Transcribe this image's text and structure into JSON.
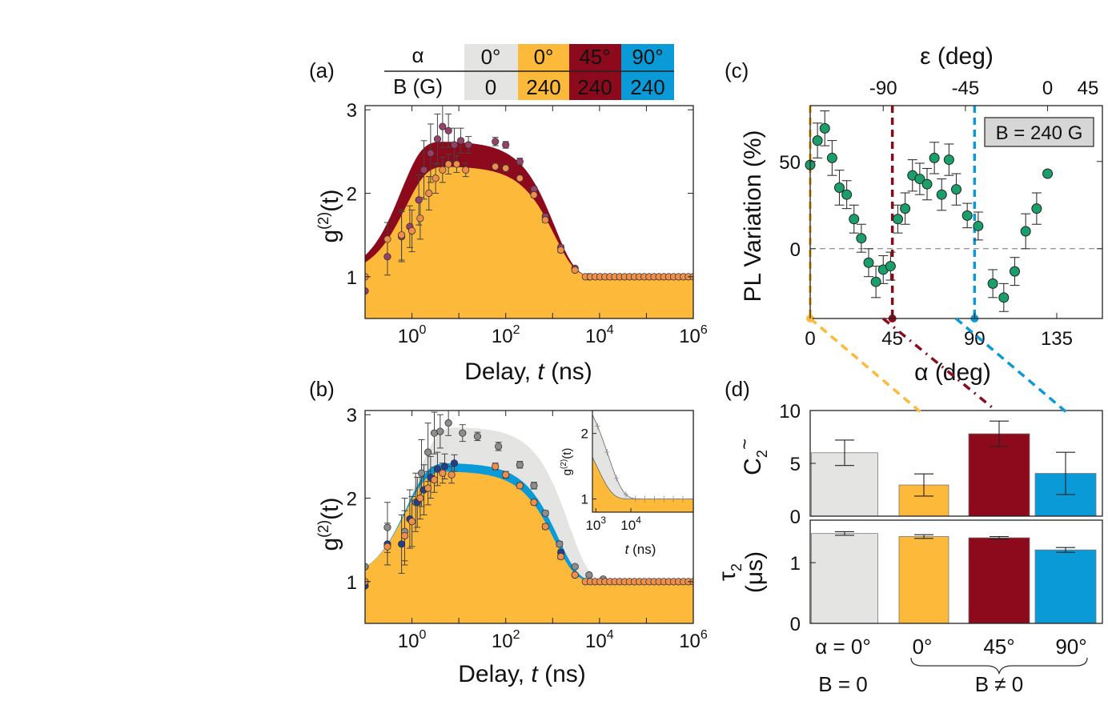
{
  "colors": {
    "grey": "#e4e4e2",
    "greyMarker": "#8d8d8d",
    "orange": "#fdb93a",
    "orangeMarker": "#ef8f4b",
    "darkred": "#8c0a1c",
    "purpleMarker": "#96406a",
    "blue": "#0b9ad8",
    "navyMarker": "#233f8c",
    "green": "#1a9e6a"
  },
  "legend_table": {
    "row1_label": "α",
    "row2_label": "B (G)",
    "columns": [
      {
        "alpha": "0°",
        "b": "0",
        "color_key": "grey"
      },
      {
        "alpha": "0°",
        "b": "240",
        "color_key": "orange"
      },
      {
        "alpha": "45°",
        "b": "240",
        "color_key": "darkred"
      },
      {
        "alpha": "90°",
        "b": "240",
        "color_key": "blue"
      }
    ]
  },
  "chart_data": [
    {
      "panel": "(a)",
      "type": "scatter",
      "xlabel_main": "Delay, ",
      "xlabel_var": "t",
      "xlabel_unit": " (ns)",
      "ylabel": "g(2)(t)",
      "ylabel_base": "g",
      "ylabel_sup": "(2)",
      "ylabel_tail": "(t)",
      "x_scale": "log",
      "xlim": [
        0.1,
        1000000
      ],
      "ylim": [
        0.5,
        3.05
      ],
      "x_ticks": [
        {
          "base": "10",
          "exp": "0"
        },
        {
          "base": "10",
          "exp": "2"
        },
        {
          "base": "10",
          "exp": "4"
        },
        {
          "base": "10",
          "exp": "6"
        }
      ],
      "y_ticks": [
        "1",
        "2",
        "3"
      ],
      "series": [
        {
          "color_key": "darkred",
          "marker_key": "purpleMarker",
          "curve": {
            "A": 1.62,
            "r": 0.6,
            "d": 1100
          },
          "points": [
            {
              "t": 0.1,
              "y": 0.83,
              "e": 0.0
            },
            {
              "t": 0.3,
              "y": 1.24,
              "e": 0.22
            },
            {
              "t": 0.6,
              "y": 1.48,
              "e": 0.3
            },
            {
              "t": 0.9,
              "y": 1.6,
              "e": 0.25
            },
            {
              "t": 1.4,
              "y": 1.92,
              "e": 0.3
            },
            {
              "t": 1.8,
              "y": 2.28,
              "e": 0.35
            },
            {
              "t": 2.5,
              "y": 2.48,
              "e": 0.35
            },
            {
              "t": 3.5,
              "y": 2.65,
              "e": 0.3
            },
            {
              "t": 4.5,
              "y": 2.8,
              "e": 0.25
            },
            {
              "t": 6,
              "y": 2.75,
              "e": 0.2
            },
            {
              "t": 8,
              "y": 2.58,
              "e": 0.2
            },
            {
              "t": 11,
              "y": 2.63,
              "e": 0.15
            },
            {
              "t": 16,
              "y": 2.58,
              "e": 0.1
            },
            {
              "t": 60,
              "y": 2.62,
              "e": 0.05
            },
            {
              "t": 100,
              "y": 2.58,
              "e": 0.04
            },
            {
              "t": 200,
              "y": 2.38,
              "e": 0.04
            },
            {
              "t": 400,
              "y": 2.05,
              "e": 0.03
            },
            {
              "t": 700,
              "y": 1.72,
              "e": 0.03
            },
            {
              "t": 1500,
              "y": 1.35,
              "e": 0.03
            },
            {
              "t": 3000,
              "y": 1.1,
              "e": 0.02
            },
            {
              "t": 6000,
              "y": 1.0,
              "e": 0.0
            }
          ]
        },
        {
          "color_key": "orange",
          "marker_key": "orangeMarker",
          "curve": {
            "A": 1.32,
            "r": 0.75,
            "d": 1100
          },
          "points": [
            {
              "t": 0.1,
              "y": 1.0,
              "e": 0.0
            },
            {
              "t": 0.3,
              "y": 1.45,
              "e": 0.2
            },
            {
              "t": 0.6,
              "y": 1.5,
              "e": 0.3
            },
            {
              "t": 1.0,
              "y": 1.55,
              "e": 0.25
            },
            {
              "t": 1.5,
              "y": 1.7,
              "e": 0.25
            },
            {
              "t": 2.3,
              "y": 2.0,
              "e": 0.2
            },
            {
              "t": 3.2,
              "y": 2.18,
              "e": 0.18
            },
            {
              "t": 4.5,
              "y": 2.28,
              "e": 0.15
            },
            {
              "t": 6,
              "y": 2.35,
              "e": 0.12
            },
            {
              "t": 9,
              "y": 2.35,
              "e": 0.1
            },
            {
              "t": 14,
              "y": 2.28,
              "e": 0.08
            },
            {
              "t": 60,
              "y": 2.32,
              "e": 0.04
            },
            {
              "t": 100,
              "y": 2.3,
              "e": 0.04
            },
            {
              "t": 200,
              "y": 2.18,
              "e": 0.03
            },
            {
              "t": 400,
              "y": 1.98,
              "e": 0.03
            },
            {
              "t": 700,
              "y": 1.68,
              "e": 0.03
            },
            {
              "t": 1500,
              "y": 1.32,
              "e": 0.03
            },
            {
              "t": 3000,
              "y": 1.08,
              "e": 0.02
            }
          ]
        }
      ],
      "baseline_points_from": 5000,
      "baseline_points_to": 1000000
    },
    {
      "panel": "(b)",
      "type": "scatter",
      "xlabel_main": "Delay, ",
      "xlabel_var": "t",
      "xlabel_unit": " (ns)",
      "ylabel": "g(2)(t)",
      "x_scale": "log",
      "xlim": [
        0.1,
        1000000
      ],
      "ylim": [
        0.5,
        3.05
      ],
      "series": [
        {
          "color_key": "grey",
          "marker_key": "greyMarker",
          "curve": {
            "A": 1.85,
            "r": 1.2,
            "d": 2200
          },
          "points": [
            {
              "t": 0.1,
              "y": 1.18,
              "e": 0.0
            },
            {
              "t": 0.3,
              "y": 1.65,
              "e": 0.3
            },
            {
              "t": 0.7,
              "y": 1.6,
              "e": 0.4
            },
            {
              "t": 1.2,
              "y": 1.95,
              "e": 0.35
            },
            {
              "t": 1.6,
              "y": 2.3,
              "e": 0.4
            },
            {
              "t": 2.2,
              "y": 2.55,
              "e": 0.35
            },
            {
              "t": 3,
              "y": 2.78,
              "e": 0.25
            },
            {
              "t": 4,
              "y": 2.8,
              "e": 0.2
            },
            {
              "t": 6,
              "y": 2.9,
              "e": 0.15
            },
            {
              "t": 12,
              "y": 2.78,
              "e": 0.1
            },
            {
              "t": 25,
              "y": 2.74,
              "e": 0.05
            },
            {
              "t": 70,
              "y": 2.62,
              "e": 0.05
            },
            {
              "t": 200,
              "y": 2.4,
              "e": 0.04
            },
            {
              "t": 400,
              "y": 2.15,
              "e": 0.04
            },
            {
              "t": 700,
              "y": 1.82,
              "e": 0.03
            },
            {
              "t": 1400,
              "y": 1.45,
              "e": 0.03
            },
            {
              "t": 3000,
              "y": 1.18,
              "e": 0.02
            },
            {
              "t": 6000,
              "y": 1.08,
              "e": 0.02
            },
            {
              "t": 12000,
              "y": 1.03,
              "e": 0.0
            }
          ]
        },
        {
          "color_key": "blue",
          "marker_key": "navyMarker",
          "curve": {
            "A": 1.42,
            "r": 0.8,
            "d": 1300
          },
          "points": [
            {
              "t": 0.1,
              "y": 0.95,
              "e": 0.0
            },
            {
              "t": 0.3,
              "y": 1.45,
              "e": 0.25
            },
            {
              "t": 0.6,
              "y": 1.45,
              "e": 0.35
            },
            {
              "t": 0.9,
              "y": 1.75,
              "e": 0.35
            },
            {
              "t": 1.3,
              "y": 1.95,
              "e": 0.3
            },
            {
              "t": 1.8,
              "y": 2.1,
              "e": 0.3
            },
            {
              "t": 2.5,
              "y": 2.25,
              "e": 0.25
            },
            {
              "t": 3.5,
              "y": 2.35,
              "e": 0.2
            },
            {
              "t": 5,
              "y": 2.38,
              "e": 0.15
            },
            {
              "t": 8,
              "y": 2.42,
              "e": 0.1
            },
            {
              "t": 1500,
              "y": 1.35,
              "e": 0.03
            },
            {
              "t": 3000,
              "y": 1.08,
              "e": 0.02
            }
          ]
        },
        {
          "color_key": "orange",
          "marker_key": "orangeMarker",
          "curve": {
            "A": 1.32,
            "r": 0.75,
            "d": 1100
          },
          "points": [
            {
              "t": 0.1,
              "y": 1.0,
              "e": 0.0
            },
            {
              "t": 0.3,
              "y": 1.42,
              "e": 0.22
            },
            {
              "t": 0.7,
              "y": 1.55,
              "e": 0.3
            },
            {
              "t": 1.0,
              "y": 1.72,
              "e": 0.3
            },
            {
              "t": 1.5,
              "y": 2.0,
              "e": 0.25
            },
            {
              "t": 2.2,
              "y": 2.12,
              "e": 0.2
            },
            {
              "t": 3,
              "y": 2.22,
              "e": 0.15
            },
            {
              "t": 4.5,
              "y": 2.3,
              "e": 0.12
            },
            {
              "t": 7,
              "y": 2.28,
              "e": 0.1
            },
            {
              "t": 60,
              "y": 2.38,
              "e": 0.04
            },
            {
              "t": 100,
              "y": 2.28,
              "e": 0.04
            },
            {
              "t": 200,
              "y": 2.15,
              "e": 0.03
            },
            {
              "t": 400,
              "y": 1.95,
              "e": 0.03
            },
            {
              "t": 700,
              "y": 1.66,
              "e": 0.03
            },
            {
              "t": 1500,
              "y": 1.3,
              "e": 0.03
            },
            {
              "t": 3000,
              "y": 1.08,
              "e": 0.02
            }
          ]
        }
      ],
      "baseline_points_from": 5000,
      "baseline_points_to": 1000000,
      "inset": {
        "xlabel_var": "t",
        "xlabel_unit": " (ns)",
        "ylabel": "g(2)(t)",
        "x_scale": "log",
        "xlim": [
          800,
          600000
        ],
        "ylim": [
          0.8,
          2.35
        ],
        "x_ticks": [
          {
            "base": "10",
            "exp": "3"
          },
          {
            "base": "10",
            "exp": "4"
          }
        ],
        "y_ticks": [
          "1",
          "2"
        ]
      }
    },
    {
      "panel": "(c)",
      "type": "scatter",
      "xlabel": "α (deg)",
      "x2label": "ε (deg)",
      "ylabel": "PL Variation (%)",
      "xlim": [
        0,
        160
      ],
      "ylim": [
        -40,
        82
      ],
      "x_ticks": [
        "0",
        "45",
        "90",
        "135"
      ],
      "x_tick_values": [
        0,
        45,
        90,
        135
      ],
      "x2_ticks": [
        "-90",
        "-45",
        "0",
        "45"
      ],
      "x2_tick_positions_alpha": [
        40,
        85,
        130,
        175
      ],
      "y_ticks": [
        "0",
        "50"
      ],
      "y_tick_values": [
        0,
        50
      ],
      "annotation": "B = 240 G",
      "vlines": [
        {
          "alpha": 0,
          "color_key": "orange"
        },
        {
          "alpha": 45,
          "color_key": "darkred"
        },
        {
          "alpha": 90,
          "color_key": "blue"
        }
      ],
      "points": [
        {
          "a": 0,
          "y": 48,
          "e": 0
        },
        {
          "a": 4,
          "y": 62,
          "e": 10
        },
        {
          "a": 8,
          "y": 69,
          "e": 10
        },
        {
          "a": 12,
          "y": 52,
          "e": 10
        },
        {
          "a": 16,
          "y": 35,
          "e": 10
        },
        {
          "a": 20,
          "y": 31,
          "e": 8
        },
        {
          "a": 24,
          "y": 17,
          "e": 8
        },
        {
          "a": 28,
          "y": 6,
          "e": 8
        },
        {
          "a": 32,
          "y": -8,
          "e": 8
        },
        {
          "a": 36,
          "y": -19,
          "e": 9
        },
        {
          "a": 40,
          "y": -12,
          "e": 8
        },
        {
          "a": 44,
          "y": -10,
          "e": 8
        },
        {
          "a": 48,
          "y": 17,
          "e": 8
        },
        {
          "a": 52,
          "y": 23,
          "e": 9
        },
        {
          "a": 56,
          "y": 42,
          "e": 9
        },
        {
          "a": 60,
          "y": 40,
          "e": 9
        },
        {
          "a": 64,
          "y": 37,
          "e": 9
        },
        {
          "a": 68,
          "y": 52,
          "e": 9
        },
        {
          "a": 72,
          "y": 31,
          "e": 9
        },
        {
          "a": 76,
          "y": 51,
          "e": 9
        },
        {
          "a": 80,
          "y": 34,
          "e": 9
        },
        {
          "a": 86,
          "y": 19,
          "e": 7
        },
        {
          "a": 92,
          "y": 13,
          "e": 8
        },
        {
          "a": 100,
          "y": -20,
          "e": 8
        },
        {
          "a": 106,
          "y": -28,
          "e": 8
        },
        {
          "a": 112,
          "y": -13,
          "e": 8
        },
        {
          "a": 118,
          "y": 10,
          "e": 10
        },
        {
          "a": 124,
          "y": 23,
          "e": 9
        },
        {
          "a": 130,
          "y": 43,
          "e": 0
        }
      ]
    },
    {
      "panel": "(d)",
      "type": "bar",
      "top_ylabel_main": "C",
      "top_ylabel_sub": "2",
      "top_ylim": [
        0,
        10
      ],
      "top_y_ticks": [
        "0",
        "5",
        "10"
      ],
      "top_values": [
        6.0,
        2.95,
        7.8,
        4.05
      ],
      "top_errors": [
        1.2,
        1.05,
        1.2,
        2.0
      ],
      "bottom_ylabel_main": "τ",
      "bottom_ylabel_sub": "2",
      "bottom_ylabel_unit": "(μs)",
      "bottom_ylim": [
        0,
        1.7
      ],
      "bottom_y_ticks": [
        "0",
        "1"
      ],
      "bottom_values": [
        1.48,
        1.43,
        1.41,
        1.21
      ],
      "bottom_errors": [
        0.03,
        0.03,
        0.02,
        0.04
      ],
      "bar_color_keys": [
        "grey",
        "orange",
        "darkred",
        "blue"
      ],
      "category_labels": [
        "α = 0°",
        "0°",
        "45°",
        "90°"
      ],
      "group_labels": [
        "B = 0",
        "B ≠ 0"
      ]
    }
  ],
  "panel_labels": [
    "(a)",
    "(b)",
    "(c)",
    "(d)"
  ]
}
